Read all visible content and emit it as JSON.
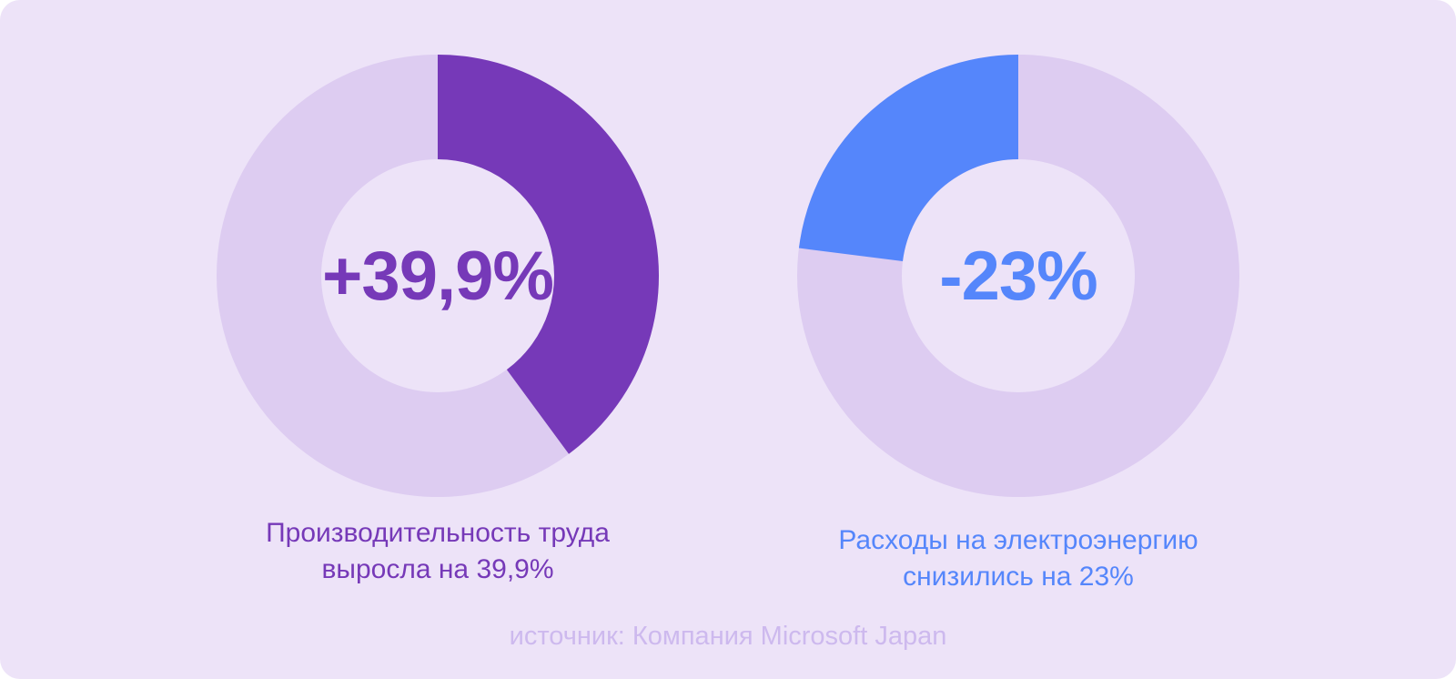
{
  "colors": {
    "background": "#ede3f8",
    "track": "#ddccf1",
    "productivity": "#7639b8",
    "energy": "#5586fb",
    "source_text": "#cdb9ee"
  },
  "chart_data": [
    {
      "type": "pie",
      "variant": "donut",
      "center_label": "+39,9%",
      "caption_line1": "Производительность труда",
      "caption_line2": "выросла на 39,9%",
      "values": [
        39.9,
        60.1
      ],
      "highlight_color": "#7639b8",
      "track_color": "#ddccf1"
    },
    {
      "type": "pie",
      "variant": "donut",
      "center_label": "-23%",
      "caption_line1": "Расходы на электроэнергию",
      "caption_line2": "снизились на 23%",
      "values": [
        23,
        77
      ],
      "direction": "counterclockwise",
      "highlight_color": "#5586fb",
      "track_color": "#ddccf1"
    }
  ],
  "source": "источник: Компания Microsoft Japan"
}
